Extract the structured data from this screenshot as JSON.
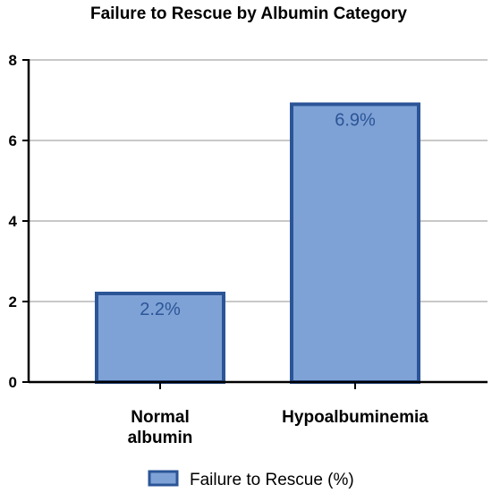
{
  "chart_data": {
    "type": "bar",
    "title": "Failure to Rescue by Albumin Category",
    "categories": [
      "Normal albumin",
      "Hypoalbuminemia"
    ],
    "category_lines": [
      [
        "Normal",
        "albumin"
      ],
      [
        "Hypoalbuminemia"
      ]
    ],
    "series": [
      {
        "name": "Failure to Rescue (%)",
        "values": [
          2.2,
          6.9
        ]
      }
    ],
    "data_labels": [
      "2.2%",
      "6.9%"
    ],
    "xlabel": "",
    "ylabel": "",
    "ylim": [
      0,
      8
    ],
    "yticks": [
      "0",
      "2",
      "4",
      "6",
      "8"
    ],
    "grid": true,
    "legend_position": "bottom",
    "colors": {
      "bar_fill": "#7fa2d6",
      "bar_stroke": "#2b5597",
      "label_text": "#2b5597",
      "grid": "#a6a6a6",
      "axis": "#000000"
    }
  }
}
